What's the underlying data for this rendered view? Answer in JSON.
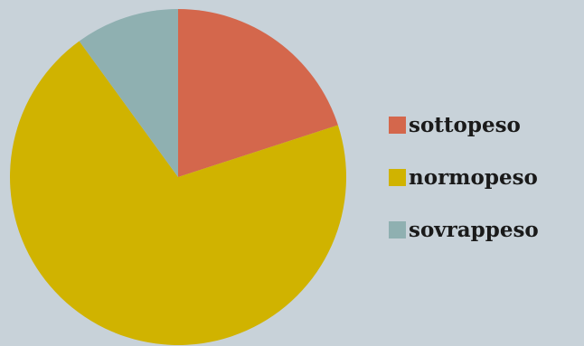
{
  "chart_data": {
    "type": "pie",
    "title": "",
    "labels": [
      "sottopeso",
      "normopeso",
      "sovrappeso"
    ],
    "values": [
      20,
      70,
      10
    ],
    "colors": [
      "#d4674c",
      "#d0b300",
      "#8fb0b1"
    ],
    "start_angle_deg": 0,
    "direction": "clockwise",
    "legend_position": "right"
  },
  "colors": {
    "background": "#c8d2d9"
  }
}
